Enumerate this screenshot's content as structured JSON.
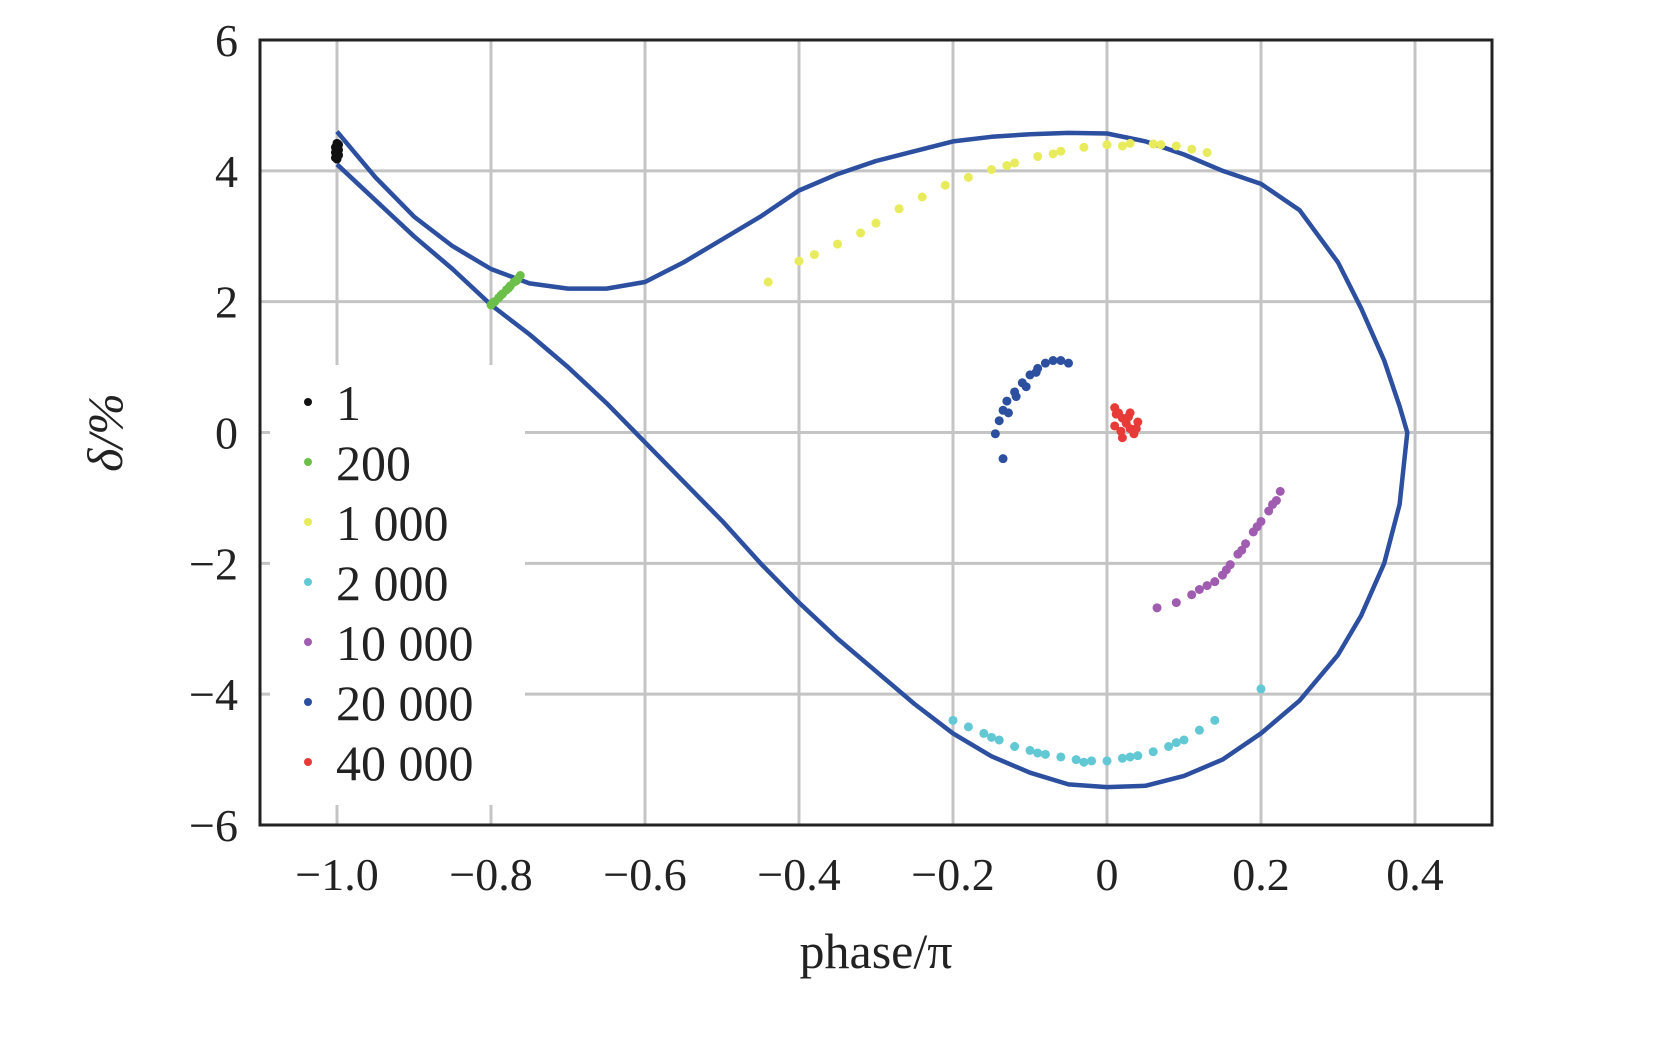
{
  "chart_data": {
    "type": "scatter",
    "xlabel": "phase/π",
    "ylabel": "δ/%",
    "xlim": [
      -1.1,
      0.5
    ],
    "ylim": [
      -6,
      6
    ],
    "xticks": [
      -1.0,
      -0.8,
      -0.6,
      -0.4,
      -0.2,
      0,
      0.2,
      0.4
    ],
    "xtick_labels": [
      "−1.0",
      "−0.8",
      "−0.6",
      "−0.4",
      "−0.2",
      "0",
      "0.2",
      "0.4"
    ],
    "yticks": [
      -6,
      -4,
      -2,
      0,
      2,
      4,
      6
    ],
    "ytick_labels": [
      "−6",
      "−4",
      "−2",
      "0",
      "2",
      "4",
      "6"
    ],
    "grid": true,
    "legend_position": "left-middle",
    "separatrix": {
      "color": "#2c4fa0",
      "x": [
        -1.0,
        -0.95,
        -0.9,
        -0.85,
        -0.8,
        -0.75,
        -0.7,
        -0.65,
        -0.6,
        -0.55,
        -0.5,
        -0.45,
        -0.4,
        -0.35,
        -0.3,
        -0.25,
        -0.2,
        -0.15,
        -0.1,
        -0.05,
        0.0,
        0.05,
        0.1,
        0.15,
        0.2,
        0.25,
        0.3,
        0.33,
        0.36,
        0.38,
        0.39,
        0.38,
        0.36,
        0.33,
        0.3,
        0.25,
        0.2,
        0.15,
        0.1,
        0.05,
        0.0,
        -0.05,
        -0.1,
        -0.15,
        -0.2,
        -0.25,
        -0.3,
        -0.35,
        -0.4,
        -0.45,
        -0.5,
        -0.55,
        -0.6,
        -0.65,
        -0.7,
        -0.75,
        -0.8,
        -0.85,
        -0.9,
        -0.95,
        -1.0
      ],
      "y": [
        4.6,
        3.9,
        3.3,
        2.85,
        2.5,
        2.28,
        2.2,
        2.2,
        2.3,
        2.6,
        2.95,
        3.3,
        3.7,
        3.95,
        4.15,
        4.3,
        4.45,
        4.52,
        4.56,
        4.58,
        4.57,
        4.45,
        4.25,
        4.0,
        3.8,
        3.4,
        2.6,
        1.9,
        1.1,
        0.4,
        0.0,
        -1.1,
        -2.0,
        -2.8,
        -3.4,
        -4.1,
        -4.6,
        -5.0,
        -5.25,
        -5.4,
        -5.42,
        -5.38,
        -5.2,
        -4.95,
        -4.6,
        -4.15,
        -3.65,
        -3.15,
        -2.6,
        -2.0,
        -1.35,
        -0.75,
        -0.15,
        0.45,
        1.0,
        1.5,
        1.95,
        2.5,
        3.0,
        3.55,
        4.1
      ]
    },
    "series": [
      {
        "name": "1",
        "color": "#111111",
        "points": [
          [
            -1.0,
            4.42
          ],
          [
            -1.0,
            4.38
          ],
          [
            -1.0,
            4.34
          ],
          [
            -1.0,
            4.3
          ],
          [
            -1.0,
            4.26
          ],
          [
            -1.0,
            4.22
          ],
          [
            -1.0,
            4.18
          ],
          [
            -0.998,
            4.4
          ],
          [
            -0.998,
            4.32
          ],
          [
            -0.998,
            4.24
          ],
          [
            -1.002,
            4.36
          ],
          [
            -1.002,
            4.28
          ],
          [
            -1.002,
            4.2
          ]
        ]
      },
      {
        "name": "200",
        "color": "#6cc04a",
        "points": [
          [
            -0.8,
            1.95
          ],
          [
            -0.795,
            2.0
          ],
          [
            -0.79,
            2.06
          ],
          [
            -0.785,
            2.12
          ],
          [
            -0.78,
            2.18
          ],
          [
            -0.775,
            2.24
          ],
          [
            -0.77,
            2.3
          ],
          [
            -0.765,
            2.35
          ],
          [
            -0.762,
            2.4
          ],
          [
            -0.797,
            1.99
          ],
          [
            -0.787,
            2.1
          ],
          [
            -0.777,
            2.21
          ],
          [
            -0.767,
            2.32
          ]
        ]
      },
      {
        "name": "1 000",
        "color": "#e8ec5c",
        "points": [
          [
            -0.44,
            2.3
          ],
          [
            -0.4,
            2.62
          ],
          [
            -0.38,
            2.72
          ],
          [
            -0.35,
            2.88
          ],
          [
            -0.32,
            3.05
          ],
          [
            -0.3,
            3.2
          ],
          [
            -0.27,
            3.42
          ],
          [
            -0.24,
            3.6
          ],
          [
            -0.21,
            3.78
          ],
          [
            -0.18,
            3.9
          ],
          [
            -0.15,
            4.02
          ],
          [
            -0.12,
            4.12
          ],
          [
            -0.09,
            4.22
          ],
          [
            -0.06,
            4.3
          ],
          [
            -0.03,
            4.36
          ],
          [
            0.0,
            4.4
          ],
          [
            0.03,
            4.42
          ],
          [
            0.06,
            4.41
          ],
          [
            0.09,
            4.38
          ],
          [
            0.11,
            4.33
          ],
          [
            0.13,
            4.28
          ],
          [
            -0.13,
            4.08
          ],
          [
            -0.07,
            4.26
          ],
          [
            0.02,
            4.38
          ],
          [
            0.07,
            4.4
          ]
        ]
      },
      {
        "name": "2 000",
        "color": "#62c8d4",
        "points": [
          [
            -0.2,
            -4.4
          ],
          [
            -0.18,
            -4.5
          ],
          [
            -0.16,
            -4.6
          ],
          [
            -0.14,
            -4.7
          ],
          [
            -0.12,
            -4.8
          ],
          [
            -0.1,
            -4.86
          ],
          [
            -0.08,
            -4.92
          ],
          [
            -0.06,
            -4.96
          ],
          [
            -0.04,
            -5.0
          ],
          [
            -0.02,
            -5.02
          ],
          [
            0.0,
            -5.02
          ],
          [
            0.02,
            -4.98
          ],
          [
            0.04,
            -4.94
          ],
          [
            0.06,
            -4.88
          ],
          [
            0.08,
            -4.8
          ],
          [
            0.1,
            -4.7
          ],
          [
            0.12,
            -4.55
          ],
          [
            0.14,
            -4.4
          ],
          [
            0.2,
            -3.92
          ],
          [
            -0.15,
            -4.66
          ],
          [
            -0.09,
            -4.9
          ],
          [
            -0.03,
            -5.04
          ],
          [
            0.03,
            -4.96
          ],
          [
            0.09,
            -4.74
          ]
        ]
      },
      {
        "name": "10 000",
        "color": "#a05cb0",
        "points": [
          [
            0.065,
            -2.68
          ],
          [
            0.09,
            -2.6
          ],
          [
            0.11,
            -2.48
          ],
          [
            0.13,
            -2.34
          ],
          [
            0.15,
            -2.18
          ],
          [
            0.16,
            -2.02
          ],
          [
            0.17,
            -1.86
          ],
          [
            0.18,
            -1.7
          ],
          [
            0.19,
            -1.52
          ],
          [
            0.2,
            -1.36
          ],
          [
            0.21,
            -1.2
          ],
          [
            0.22,
            -1.04
          ],
          [
            0.225,
            -0.9
          ],
          [
            0.12,
            -2.4
          ],
          [
            0.14,
            -2.28
          ],
          [
            0.155,
            -2.1
          ],
          [
            0.175,
            -1.8
          ],
          [
            0.195,
            -1.44
          ],
          [
            0.215,
            -1.1
          ]
        ]
      },
      {
        "name": "20 000",
        "color": "#2c4fa0",
        "points": [
          [
            -0.145,
            -0.02
          ],
          [
            -0.14,
            0.18
          ],
          [
            -0.135,
            0.34
          ],
          [
            -0.13,
            0.48
          ],
          [
            -0.12,
            0.62
          ],
          [
            -0.11,
            0.76
          ],
          [
            -0.1,
            0.88
          ],
          [
            -0.09,
            0.98
          ],
          [
            -0.08,
            1.06
          ],
          [
            -0.07,
            1.1
          ],
          [
            -0.06,
            1.1
          ],
          [
            -0.05,
            1.06
          ],
          [
            -0.135,
            -0.4
          ],
          [
            -0.128,
            0.3
          ],
          [
            -0.118,
            0.55
          ],
          [
            -0.105,
            0.7
          ],
          [
            -0.092,
            0.92
          ]
        ]
      },
      {
        "name": "40 000",
        "color": "#e83a36",
        "points": [
          [
            0.01,
            0.38
          ],
          [
            0.015,
            0.3
          ],
          [
            0.02,
            0.22
          ],
          [
            0.025,
            0.14
          ],
          [
            0.03,
            0.06
          ],
          [
            0.035,
            -0.02
          ],
          [
            0.02,
            -0.08
          ],
          [
            0.03,
            0.3
          ],
          [
            0.01,
            0.1
          ],
          [
            0.04,
            0.16
          ],
          [
            0.018,
            0.02
          ],
          [
            0.028,
            0.24
          ],
          [
            0.038,
            0.06
          ],
          [
            0.012,
            0.28
          ]
        ]
      }
    ]
  }
}
